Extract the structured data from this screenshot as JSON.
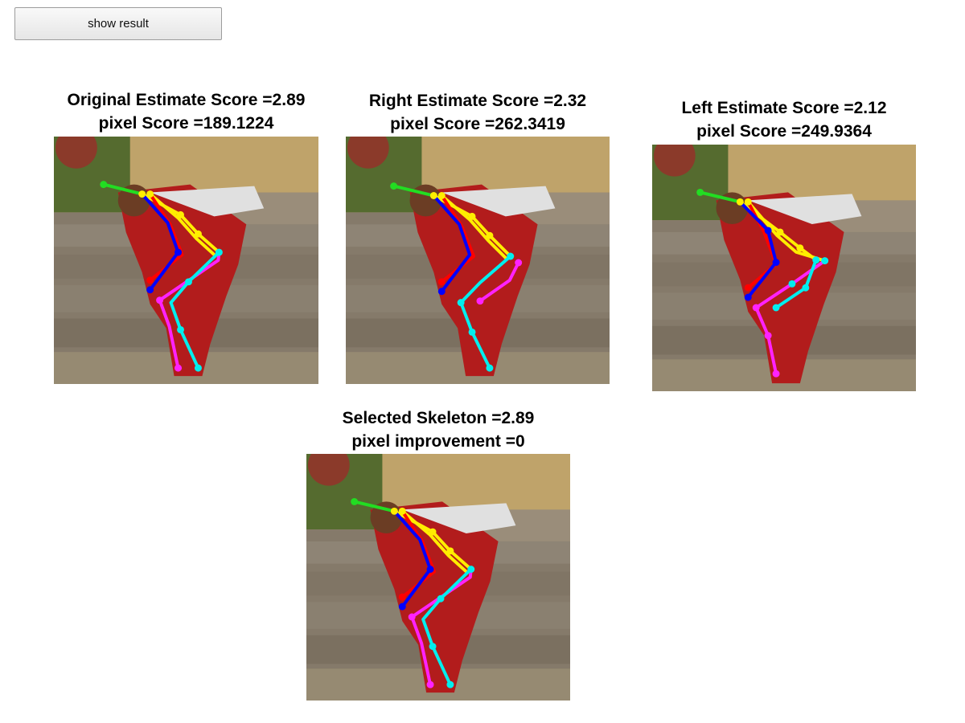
{
  "toolbar": {
    "show_result_label": "show result"
  },
  "panels": [
    {
      "id": "original",
      "title_line1": "Original Estimate Score =2.89",
      "title_line2": "pixel Score =189.1224"
    },
    {
      "id": "right",
      "title_line1": "Right Estimate Score =2.32",
      "title_line2": "pixel Score =262.3419"
    },
    {
      "id": "left",
      "title_line1": "Left Estimate Score =2.12",
      "title_line2": "pixel Score =249.9364"
    },
    {
      "id": "selected",
      "title_line1": "Selected Skeleton =2.89",
      "title_line2": "pixel improvement =0"
    }
  ],
  "skeleton_colors": {
    "head": "#22dd22",
    "torso": "#ffee00",
    "left_arm": "#ff0000",
    "right_arm": "#0000ff",
    "left_leg": "#ff22ff",
    "right_leg": "#00eeee"
  }
}
